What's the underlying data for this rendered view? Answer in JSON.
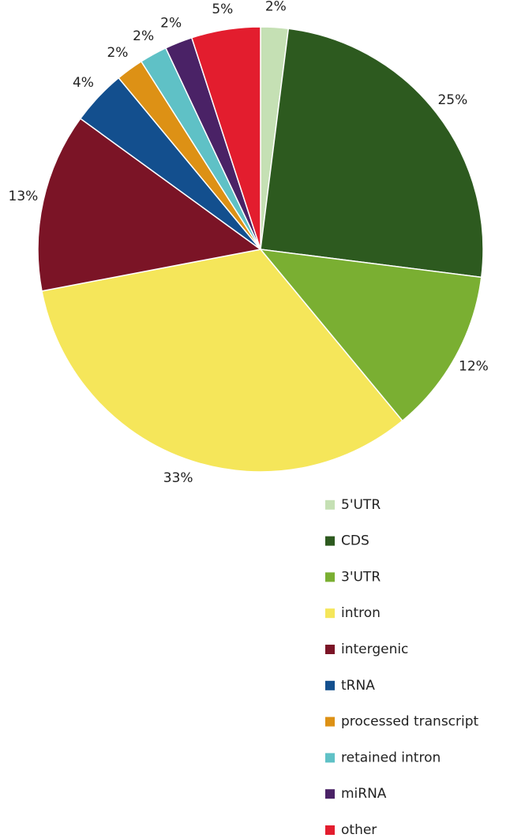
{
  "chart_data": {
    "type": "pie",
    "categories": [
      "5'UTR",
      "CDS",
      "3'UTR",
      "intron",
      "intergenic",
      "tRNA",
      "processed transcript",
      "retained intron",
      "miRNA",
      "other"
    ],
    "values": [
      2,
      25,
      12,
      33,
      13,
      4,
      2,
      2,
      2,
      5
    ],
    "value_labels": [
      "2%",
      "25%",
      "12%",
      "33%",
      "13%",
      "4%",
      "2%",
      "2%",
      "2%",
      "5%"
    ],
    "colors": [
      "#c5e0b4",
      "#2d5a1f",
      "#7aaf32",
      "#f5e65a",
      "#7b1426",
      "#134f8e",
      "#dd9115",
      "#5fc1c6",
      "#4a2266",
      "#e31d2e"
    ],
    "legend": "bottom-right"
  }
}
